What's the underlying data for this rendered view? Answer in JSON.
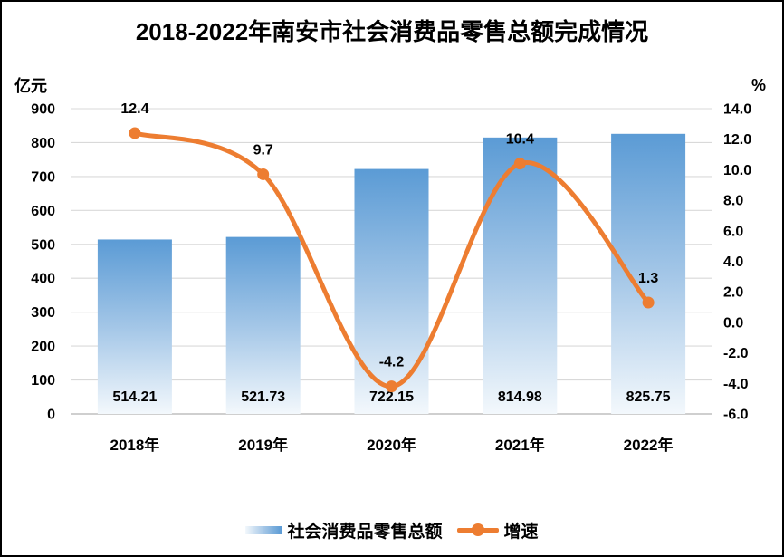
{
  "title": "2018-2022年南安市社会消费品零售总额完成情况",
  "left_axis": {
    "unit": "亿元",
    "tick_labels": [
      "900",
      "800",
      "700",
      "600",
      "500",
      "400",
      "300",
      "200",
      "100",
      "0"
    ]
  },
  "right_axis": {
    "unit": "%",
    "tick_labels": [
      "14.0",
      "12.0",
      "10.0",
      "8.0",
      "6.0",
      "4.0",
      "2.0",
      "0.0",
      "-2.0",
      "-4.0",
      "-6.0"
    ]
  },
  "chart_data": {
    "type": "bar",
    "subtype": "combo bar + smooth line, dual y-axes",
    "title": "2018-2022年南安市社会消费品零售总额完成情况",
    "categories": [
      "2018年",
      "2019年",
      "2020年",
      "2021年",
      "2022年"
    ],
    "series": [
      {
        "name": "社会消费品零售总额",
        "type": "bar",
        "axis": "left",
        "unit": "亿元",
        "values": [
          514.21,
          521.73,
          722.15,
          814.98,
          825.75
        ],
        "value_labels": [
          "514.21",
          "521.73",
          "722.15",
          "814.98",
          "825.75"
        ],
        "color": "#5B9BD5",
        "gradient_bottom": "#F3F8FC"
      },
      {
        "name": "增速",
        "type": "line",
        "axis": "right",
        "unit": "%",
        "smooth": true,
        "values": [
          12.4,
          9.7,
          -4.2,
          10.4,
          1.3
        ],
        "value_labels": [
          "12.4",
          "9.7",
          "-4.2",
          "10.4",
          "1.3"
        ],
        "color": "#ED7D31"
      }
    ],
    "left_ylim": [
      0,
      900
    ],
    "right_ylim": [
      -6,
      14
    ],
    "grid": true,
    "legend_position": "bottom"
  },
  "legend": {
    "items": [
      {
        "label": "社会消费品零售总额",
        "swatch": "gradient-bar"
      },
      {
        "label": "增速",
        "swatch": "line-with-marker"
      }
    ]
  },
  "colors": {
    "bar_top": "#5B9BD5",
    "bar_bottom": "#F3F8FC",
    "line": "#ED7D31",
    "grid": "#D9D9D9",
    "axis": "#BFBFBF",
    "text": "#000000",
    "background": "#FFFFFF",
    "border": "#000000"
  }
}
